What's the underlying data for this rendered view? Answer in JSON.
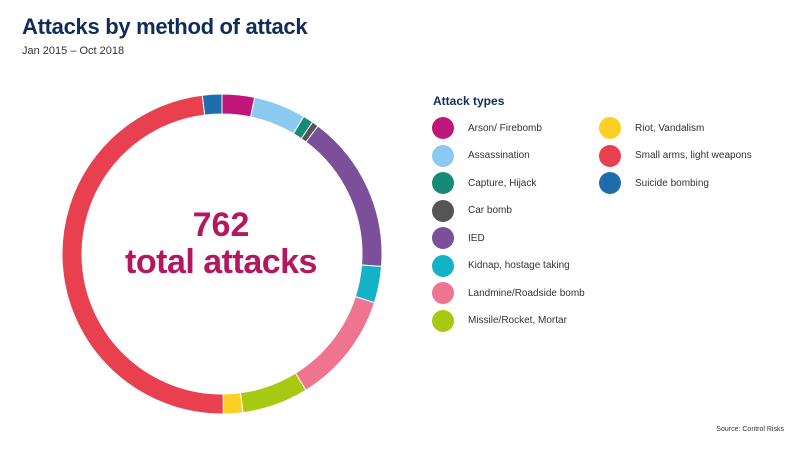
{
  "title": "Attacks by method of attack",
  "subtitle": "Jan 2015 – Oct 2018",
  "center": {
    "number": "762",
    "text": "total attacks"
  },
  "legend_title": "Attack types",
  "source": "Source: Control Risks",
  "chart_data": {
    "type": "pie",
    "variant": "donut",
    "total": 762,
    "categories": [
      "Arson/ Firebomb",
      "Assassination",
      "Capture, Hijack",
      "Car bomb",
      "IED",
      "Kidnap, hostage taking",
      "Landmine/Roadside bomb",
      "Missile/Rocket, Mortar",
      "Riot, Vandalism",
      "Small arms, light weapons",
      "Suicide bombing"
    ],
    "values": [
      25,
      40,
      8,
      5,
      122,
      28,
      86,
      51,
      15,
      367,
      15
    ],
    "colors": [
      "#c0157a",
      "#8ac9f0",
      "#168a74",
      "#555555",
      "#7b4f9a",
      "#14b2c7",
      "#ee7490",
      "#a8c912",
      "#fbcf23",
      "#e8404f",
      "#1f6dad"
    ],
    "legend_position": "right"
  }
}
